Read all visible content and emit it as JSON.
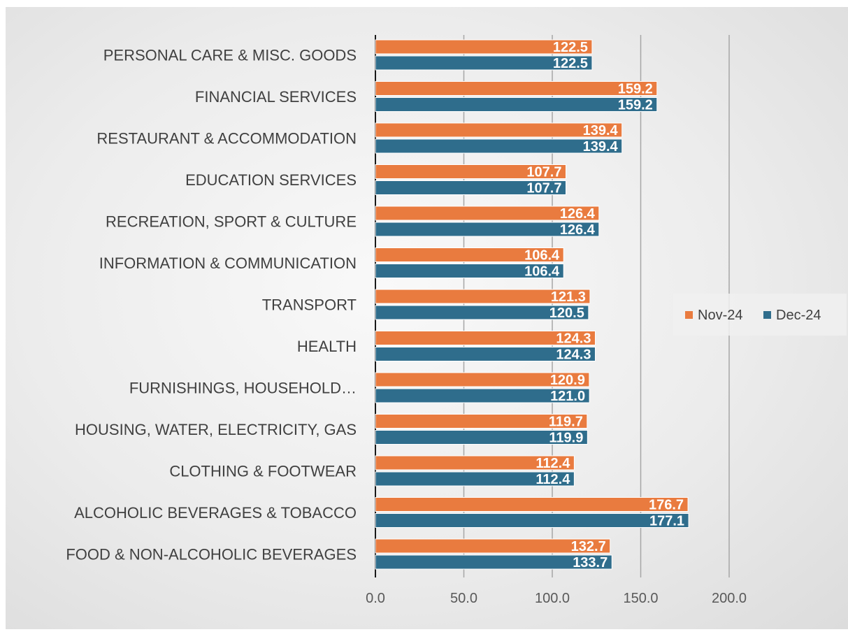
{
  "chart_data": {
    "type": "bar",
    "orientation": "horizontal",
    "categories": [
      "FOOD & NON-ALCOHOLIC BEVERAGES",
      "ALCOHOLIC BEVERAGES & TOBACCO",
      "CLOTHING & FOOTWEAR",
      "HOUSING, WATER, ELECTRICITY, GAS",
      "FURNISHINGS, HOUSEHOLD…",
      "HEALTH",
      "TRANSPORT",
      "INFORMATION & COMMUNICATION",
      "RECREATION, SPORT & CULTURE",
      "EDUCATION SERVICES",
      "RESTAURANT & ACCOMMODATION",
      "FINANCIAL SERVICES",
      "PERSONAL CARE & MISC. GOODS"
    ],
    "series": [
      {
        "name": "Nov-24",
        "color": "#E97B3F",
        "values": [
          132.7,
          176.7,
          112.4,
          119.7,
          120.9,
          124.3,
          121.3,
          106.4,
          126.4,
          107.7,
          139.4,
          159.2,
          122.5
        ],
        "labels": [
          "132.7",
          "176.7",
          "112.4",
          "119.7",
          "120.9",
          "124.3",
          "121.3",
          "106.4",
          "126.4",
          "107.7",
          "139.4",
          "159.2",
          "122.5"
        ]
      },
      {
        "name": "Dec-24",
        "color": "#2F6D8C",
        "values": [
          133.7,
          177.1,
          112.4,
          119.9,
          121.0,
          124.3,
          120.5,
          106.4,
          126.4,
          107.7,
          139.4,
          159.2,
          122.5
        ],
        "labels": [
          "133.7",
          "177.1",
          "112.4",
          "119.9",
          "121.0",
          "124.3",
          "120.5",
          "106.4",
          "126.4",
          "107.7",
          "139.4",
          "159.2",
          "122.5"
        ]
      }
    ],
    "xlim": [
      0,
      200
    ],
    "xticks": [
      0,
      50,
      100,
      150,
      200
    ],
    "xtick_labels": [
      "0.0",
      "50.0",
      "100.0",
      "150.0",
      "200.0"
    ],
    "grid": "vertical",
    "legend_position": "right",
    "title": "",
    "xlabel": "",
    "ylabel": ""
  }
}
